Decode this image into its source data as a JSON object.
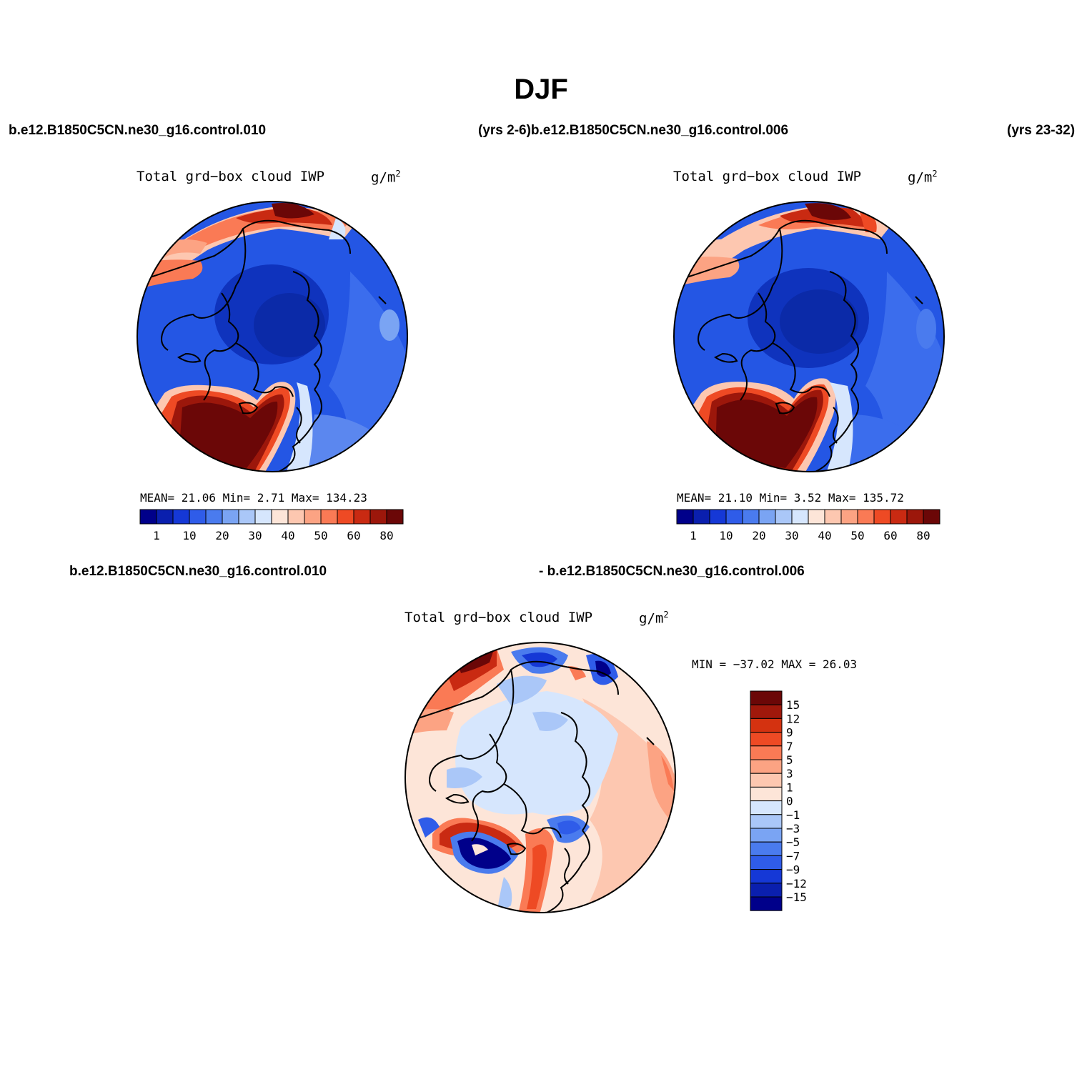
{
  "title": "DJF",
  "top_captions": {
    "left_case": "b.e12.B1850C5CN.ne30_g16.control.010",
    "mid_caption": "(yrs 2-6)b.e12.B1850C5CN.ne30_g16.control.006",
    "right_years": "(yrs 23-32)"
  },
  "bottom_captions": {
    "left_case": "b.e12.B1850C5CN.ne30_g16.control.010",
    "right_case": "- b.e12.B1850C5CN.ne30_g16.control.006"
  },
  "panels": [
    {
      "variable": "Total grd−box cloud IWP",
      "units": "g/m",
      "units_sup": "2",
      "stats": "MEAN=  21.06  Min=    2.71  Max= 134.23",
      "colorbar": {
        "colors": [
          "#00008a",
          "#0a1fae",
          "#1538d6",
          "#2f5ce9",
          "#4a7bee",
          "#7aa4f3",
          "#aac7f8",
          "#d6e6fd",
          "#fde5d8",
          "#fdc7b0",
          "#fca383",
          "#fa7a55",
          "#ee4a24",
          "#c92a12",
          "#9c170b",
          "#6b0707"
        ],
        "labels": [
          "1",
          "10",
          "20",
          "30",
          "40",
          "50",
          "60",
          "80"
        ]
      }
    },
    {
      "variable": "Total grd−box cloud IWP",
      "units": "g/m",
      "units_sup": "2",
      "stats": "MEAN=  21.10  Min=    3.52  Max= 135.72",
      "colorbar": {
        "colors": [
          "#00008a",
          "#0a1fae",
          "#1538d6",
          "#2f5ce9",
          "#4a7bee",
          "#7aa4f3",
          "#aac7f8",
          "#d6e6fd",
          "#fde5d8",
          "#fdc7b0",
          "#fca383",
          "#fa7a55",
          "#ee4a24",
          "#c92a12",
          "#9c170b",
          "#6b0707"
        ],
        "labels": [
          "1",
          "10",
          "20",
          "30",
          "40",
          "50",
          "60",
          "80"
        ]
      }
    },
    {
      "variable": "Total grd−box cloud IWP",
      "units": "g/m",
      "units_sup": "2",
      "stats": "MIN = −37.02 MAX =  26.03",
      "colorbar": {
        "colors": [
          "#6b0707",
          "#a0180b",
          "#d43210",
          "#ee4a24",
          "#fa7a55",
          "#fca383",
          "#fdc7b0",
          "#fde5d8",
          "#d6e6fd",
          "#aac7f8",
          "#7aa4f3",
          "#4a7bee",
          "#2f5ce9",
          "#1538d6",
          "#0a1fae",
          "#00008a"
        ],
        "labels": [
          "15",
          "12",
          "9",
          "7",
          "5",
          "3",
          "1",
          "0",
          "−1",
          "−3",
          "−5",
          "−7",
          "−9",
          "−12",
          "−15"
        ]
      }
    }
  ]
}
